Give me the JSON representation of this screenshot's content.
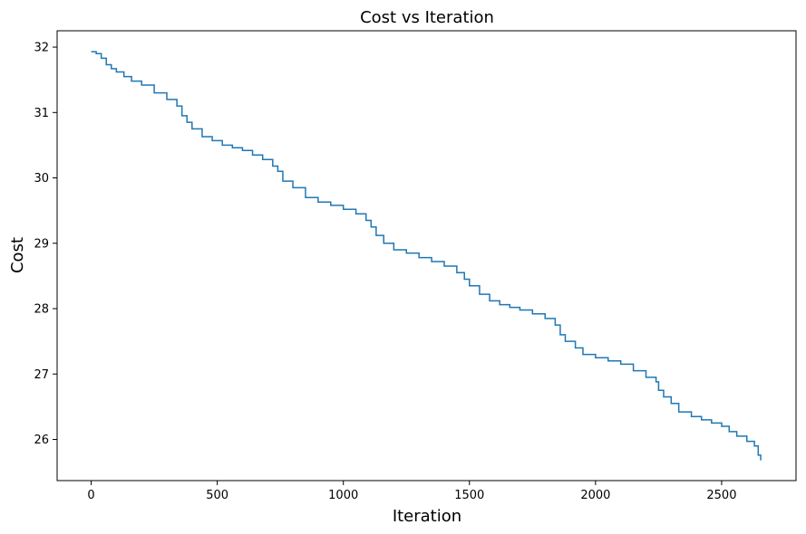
{
  "chart_data": {
    "type": "line",
    "title": "Cost vs Iteration",
    "xlabel": "Iteration",
    "ylabel": "Cost",
    "xlim": [
      -135,
      2795
    ],
    "ylim": [
      25.37,
      32.25
    ],
    "xticks": [
      0,
      500,
      1000,
      1500,
      2000,
      2500
    ],
    "yticks": [
      26,
      27,
      28,
      29,
      30,
      31,
      32
    ],
    "grid": false,
    "line_color": "#1f77b4",
    "series": [
      {
        "x": [
          0,
          20,
          40,
          60,
          80,
          100,
          130,
          160,
          200,
          250,
          300,
          340,
          360,
          380,
          400,
          440,
          480,
          520,
          560,
          600,
          640,
          680,
          720,
          740,
          760,
          800,
          850,
          900,
          950,
          1000,
          1050,
          1090,
          1110,
          1130,
          1160,
          1200,
          1250,
          1300,
          1350,
          1400,
          1450,
          1480,
          1500,
          1540,
          1580,
          1620,
          1660,
          1700,
          1750,
          1800,
          1840,
          1860,
          1880,
          1920,
          1950,
          2000,
          2050,
          2100,
          2150,
          2200,
          2240,
          2250,
          2270,
          2300,
          2330,
          2380,
          2420,
          2460,
          2500,
          2530,
          2560,
          2600,
          2630,
          2645,
          2655
        ],
        "y": [
          31.93,
          31.9,
          31.83,
          31.73,
          31.67,
          31.62,
          31.55,
          31.48,
          31.42,
          31.3,
          31.2,
          31.1,
          30.95,
          30.85,
          30.75,
          30.63,
          30.57,
          30.5,
          30.46,
          30.42,
          30.35,
          30.28,
          30.18,
          30.1,
          29.95,
          29.85,
          29.7,
          29.63,
          29.58,
          29.52,
          29.45,
          29.35,
          29.25,
          29.12,
          29.0,
          28.9,
          28.85,
          28.78,
          28.72,
          28.65,
          28.55,
          28.45,
          28.35,
          28.22,
          28.12,
          28.06,
          28.02,
          27.98,
          27.92,
          27.85,
          27.75,
          27.6,
          27.5,
          27.4,
          27.3,
          27.25,
          27.2,
          27.15,
          27.05,
          26.95,
          26.88,
          26.75,
          26.65,
          26.55,
          26.42,
          26.35,
          26.3,
          26.25,
          26.2,
          26.12,
          26.05,
          25.97,
          25.9,
          25.76,
          25.68
        ]
      }
    ]
  }
}
